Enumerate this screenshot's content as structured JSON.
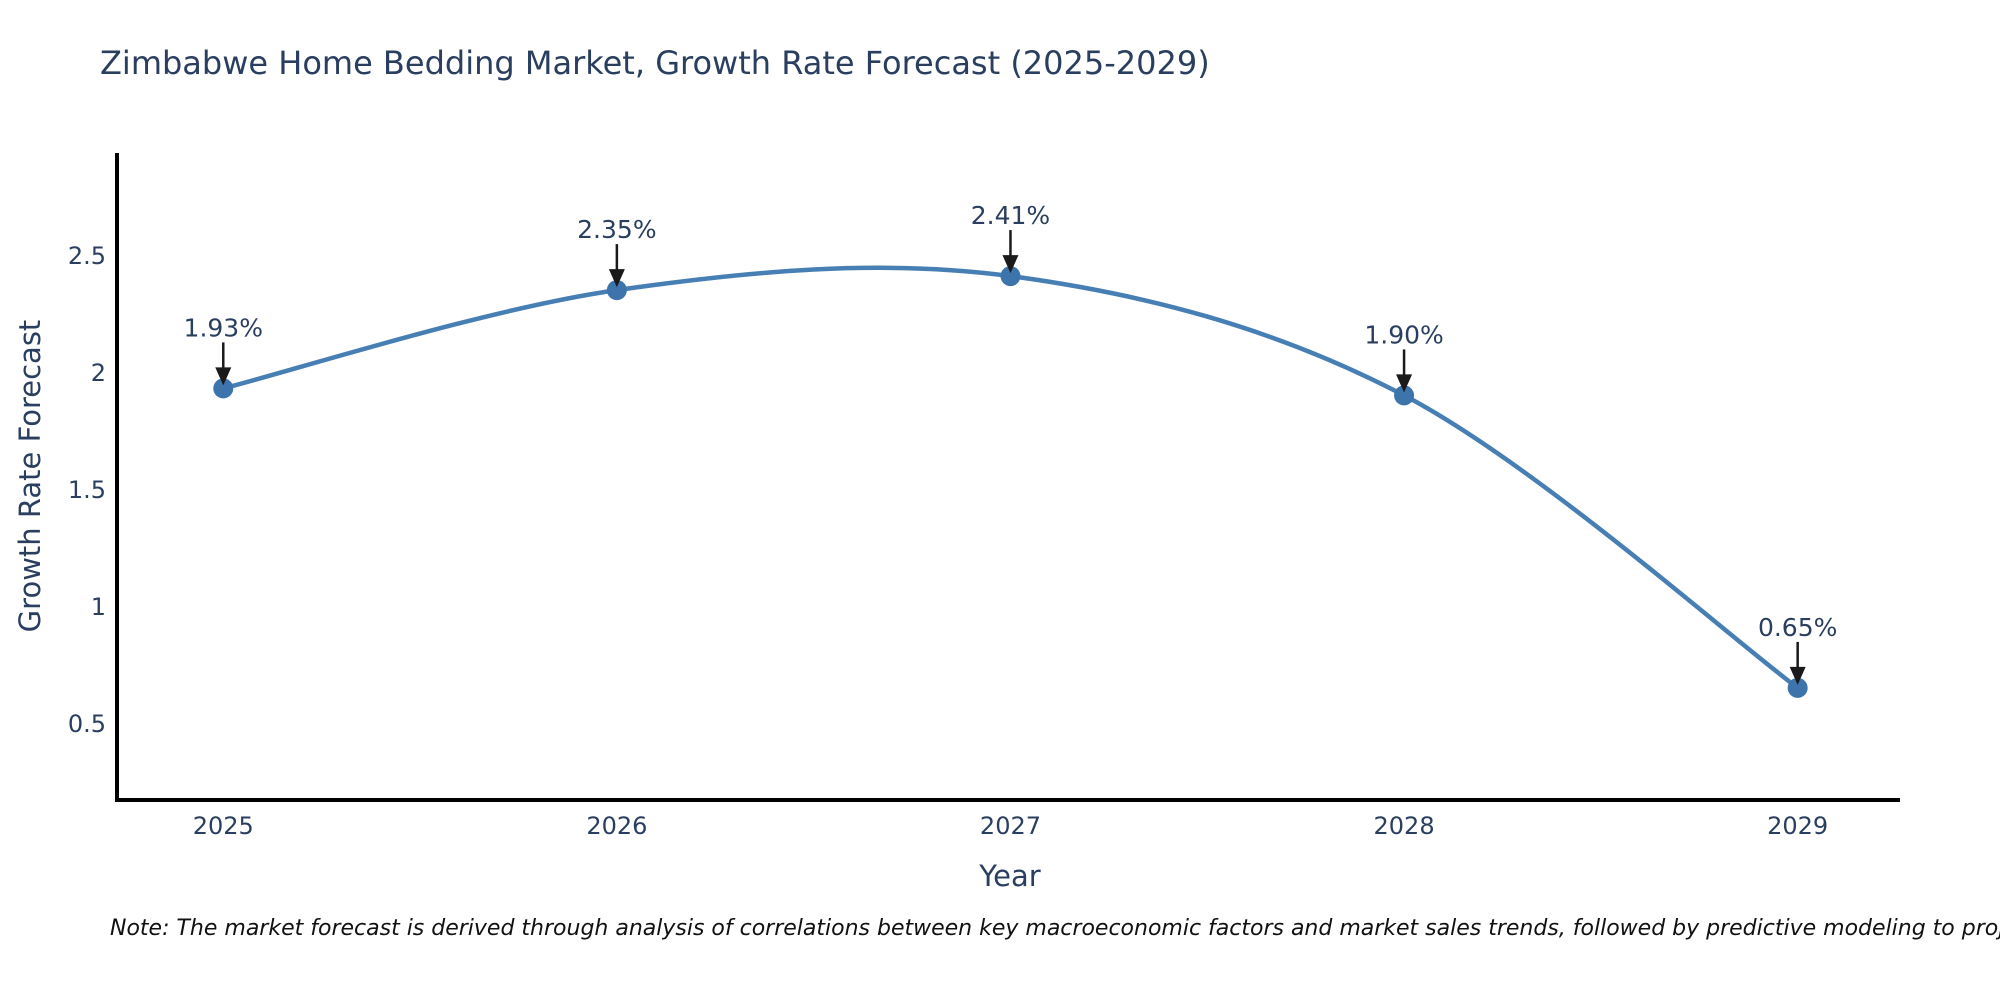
{
  "chart_title": "Zimbabwe Home Bedding Market, Growth Rate Forecast (2025-2029)",
  "note": {
    "text": "Note: The market forecast is derived through analysis of correlations between key macroeconomic factors and market sales trends, followed by predictive modeling to project future sales"
  },
  "chart_data": {
    "type": "line",
    "title": "Zimbabwe Home Bedding Market, Growth Rate Forecast (2025-2029)",
    "xlabel": "Year",
    "ylabel": "Growth Rate Forecast",
    "x": [
      2025,
      2026,
      2027,
      2028,
      2029
    ],
    "series": [
      {
        "name": "Growth Rate Forecast",
        "values": [
          1.93,
          2.35,
          2.41,
          1.9,
          0.65
        ]
      }
    ],
    "point_labels": [
      "1.93%",
      "2.35%",
      "2.41%",
      "1.90%",
      "0.65%"
    ],
    "x_tick_labels": [
      "2025",
      "2026",
      "2027",
      "2028",
      "2029"
    ],
    "y_tick_values": [
      0.5,
      1,
      1.5,
      2,
      2.5
    ],
    "y_tick_labels": [
      "0.5",
      "1",
      "1.5",
      "2",
      "2.5"
    ],
    "xlim": [
      2024.73,
      2029.26
    ],
    "ylim": [
      0.171,
      2.936
    ],
    "grid": false,
    "legend_position": "none",
    "line_shape": "spline",
    "colors": {
      "line": "#477fb5",
      "marker": "#3d74ac",
      "axis": "#000000",
      "tick_text": "#2a3f5f",
      "annotation_text": "#2a3f5f",
      "annotation_arrow": "#1a1a1a"
    }
  }
}
